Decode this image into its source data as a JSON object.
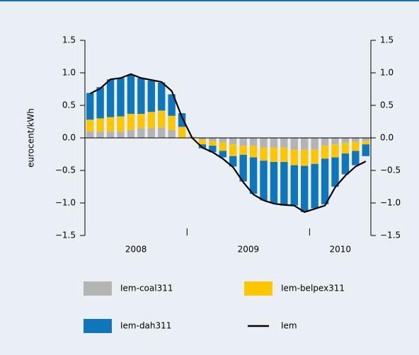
{
  "chart_data": {
    "type": "stacked-bar-line",
    "y_label": "eurocent/kWh",
    "categories": [
      null,
      null,
      null,
      null,
      null,
      null,
      null,
      null,
      null,
      null,
      null,
      null,
      null,
      null,
      null,
      null,
      null,
      null,
      null,
      null,
      null,
      null,
      null,
      null,
      null,
      null,
      null,
      null
    ],
    "x_groups": [
      {
        "label": "2008",
        "count": 10
      },
      {
        "label": "2009",
        "count": 12
      },
      {
        "label": "2010",
        "count": 6
      }
    ],
    "series": [
      {
        "name": "Iem-coal311",
        "color": "#b4b4b4",
        "values": [
          0.1,
          0.1,
          0.1,
          0.1,
          0.12,
          0.15,
          0.15,
          0.16,
          0.12,
          0.0,
          0.01,
          -0.03,
          -0.05,
          -0.07,
          -0.1,
          -0.12,
          -0.12,
          -0.15,
          -0.15,
          -0.15,
          -0.18,
          -0.18,
          -0.18,
          -0.12,
          -0.1,
          -0.08,
          -0.06,
          -0.05
        ]
      },
      {
        "name": "Iem-belpex311",
        "color": "#fdc600",
        "values": [
          0.18,
          0.2,
          0.22,
          0.23,
          0.25,
          0.22,
          0.25,
          0.26,
          0.22,
          0.17,
          0.01,
          -0.07,
          -0.07,
          -0.13,
          -0.18,
          -0.14,
          -0.18,
          -0.2,
          -0.22,
          -0.22,
          -0.24,
          -0.25,
          -0.22,
          -0.2,
          -0.2,
          -0.16,
          -0.14,
          -0.05
        ]
      },
      {
        "name": "Iem-dah311",
        "color": "#0f76bb",
        "values": [
          0.41,
          0.48,
          0.58,
          0.59,
          0.6,
          0.55,
          0.48,
          0.43,
          0.33,
          0.21,
          0.0,
          -0.06,
          -0.1,
          -0.1,
          -0.16,
          -0.41,
          -0.56,
          -0.61,
          -0.63,
          -0.67,
          -0.62,
          -0.71,
          -0.68,
          -0.7,
          -0.45,
          -0.32,
          -0.22,
          -0.18
        ]
      },
      {
        "name": "Iem",
        "type": "line",
        "color": "#000000",
        "values": [
          0.68,
          0.76,
          0.9,
          0.92,
          0.98,
          0.92,
          0.89,
          0.86,
          0.72,
          0.32,
          0.0,
          -0.15,
          -0.22,
          -0.32,
          -0.45,
          -0.68,
          -0.87,
          -0.96,
          -1.01,
          -1.03,
          -1.04,
          -1.14,
          -1.09,
          -1.04,
          -0.76,
          -0.58,
          -0.44,
          -0.36
        ]
      }
    ],
    "ylim": [
      -1.5,
      1.5
    ],
    "yticks": [
      {
        "value": -1.5,
        "label": "−1.5"
      },
      {
        "value": -1,
        "label": "−1.0"
      },
      {
        "value": -0.5,
        "label": "−0.5"
      },
      {
        "value": 0,
        "label": "0.0"
      },
      0.5,
      {
        "value": 1,
        "label": "1.0"
      },
      1.5
    ],
    "y2lim": [
      -1.5,
      1.5
    ],
    "y2ticks": [
      {
        "value": -1.5,
        "label": "−1.5"
      },
      {
        "value": -1,
        "label": "−1.0"
      },
      {
        "value": -0.5,
        "label": "−0.5"
      },
      {
        "value": 0,
        "label": "0.0"
      },
      0.5,
      {
        "value": 1,
        "label": "1.0"
      },
      1.5
    ]
  }
}
